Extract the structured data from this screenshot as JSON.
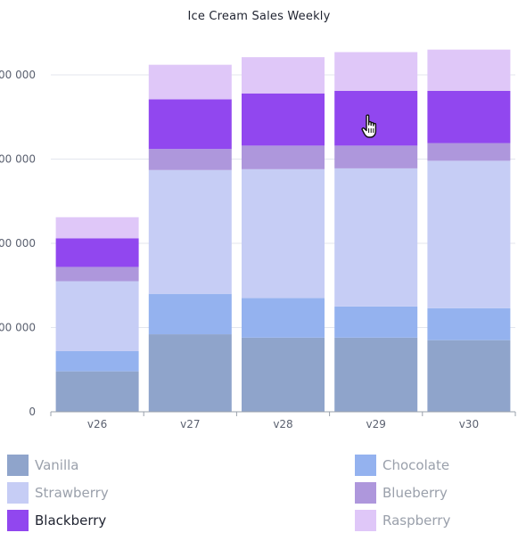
{
  "chart_data": {
    "type": "bar",
    "stacked": true,
    "title": "Ice Cream Sales Weekly",
    "categories": [
      "v26",
      "v27",
      "v28",
      "v29",
      "v30"
    ],
    "y_tick_labels": [
      "0",
      "000 000",
      "000 000",
      "000 000",
      "000 000"
    ],
    "ylim": [
      0,
      4.5
    ],
    "grid": true,
    "legend_position": "bottom",
    "highlighted_series": "Blackberry",
    "series": [
      {
        "name": "Vanilla",
        "color": "#8fa4cb",
        "values": [
          0.48,
          0.92,
          0.88,
          0.88,
          0.85
        ]
      },
      {
        "name": "Chocolate",
        "color": "#94b2ef",
        "values": [
          0.24,
          0.48,
          0.47,
          0.37,
          0.38
        ]
      },
      {
        "name": "Strawberry",
        "color": "#c6cdf5",
        "values": [
          0.83,
          1.47,
          1.53,
          1.64,
          1.75
        ]
      },
      {
        "name": "Blueberry",
        "color": "#ae97dc",
        "values": [
          0.17,
          0.25,
          0.28,
          0.27,
          0.21
        ]
      },
      {
        "name": "Blackberry",
        "color": "#9147ef",
        "values": [
          0.34,
          0.59,
          0.62,
          0.65,
          0.62
        ]
      },
      {
        "name": "Raspberry",
        "color": "#dfc7f8",
        "values": [
          0.25,
          0.41,
          0.43,
          0.46,
          0.49
        ]
      }
    ]
  }
}
